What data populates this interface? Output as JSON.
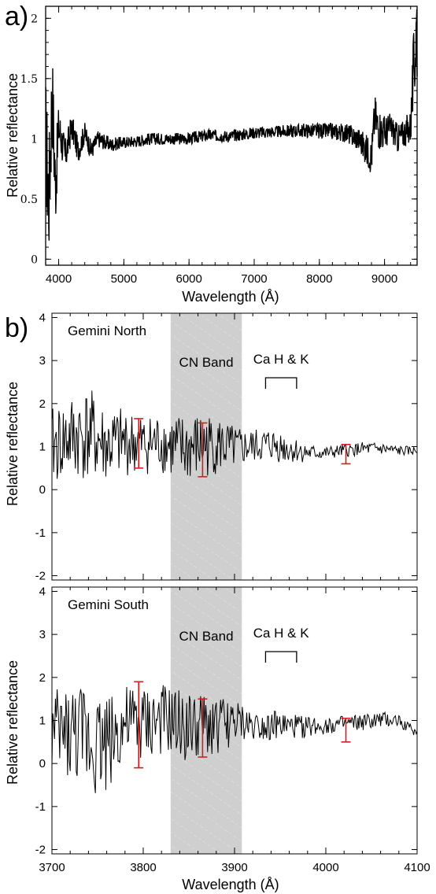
{
  "chart_data": [
    {
      "type": "line",
      "panel_label": "a)",
      "xlabel": "Wavelength (Å)",
      "ylabel": "Relative reflectance",
      "xlim": [
        3800,
        9500
      ],
      "ylim": [
        -0.05,
        2.1
      ],
      "xticks": [
        4000,
        5000,
        6000,
        7000,
        8000,
        9000
      ],
      "yticks": [
        0,
        0.5,
        1,
        1.5,
        2
      ],
      "ytick_labels": [
        "0",
        "0.5",
        "1",
        "1.5",
        "2"
      ],
      "series": [
        {
          "x": [
            3800,
            3850,
            3900,
            3950,
            4000,
            4100,
            4200,
            4300,
            4400,
            4500,
            4600,
            4800,
            5000,
            5200,
            5400,
            5600,
            5800,
            6000,
            6300,
            6600,
            7000,
            7400,
            7800,
            8200,
            8400,
            8600,
            8800,
            8850,
            8900,
            9000,
            9100,
            9200,
            9300,
            9400,
            9450,
            9500
          ],
          "y": [
            1.0,
            0.5,
            1.4,
            0.6,
            1.1,
            0.85,
            1.1,
            0.9,
            1.05,
            0.9,
            1.0,
            0.95,
            0.97,
            0.98,
            1.0,
            1.0,
            1.0,
            1.0,
            1.03,
            1.02,
            1.05,
            1.06,
            1.07,
            1.06,
            1.05,
            1.0,
            0.85,
            1.2,
            1.1,
            1.05,
            1.1,
            1.0,
            1.05,
            1.1,
            1.6,
            2.0
          ],
          "noise": [
            0.55,
            0.5,
            0.45,
            0.35,
            0.2,
            0.15,
            0.12,
            0.1,
            0.09,
            0.08,
            0.07,
            0.06,
            0.05,
            0.05,
            0.05,
            0.05,
            0.05,
            0.05,
            0.05,
            0.05,
            0.05,
            0.05,
            0.06,
            0.07,
            0.08,
            0.1,
            0.15,
            0.18,
            0.18,
            0.15,
            0.12,
            0.12,
            0.12,
            0.15,
            0.35,
            0.55
          ]
        }
      ],
      "grid": false
    },
    {
      "type": "line",
      "panel_label": "b)",
      "label": "Gemini North",
      "xlabel": "",
      "ylabel": "Relative reflectance",
      "xlim": [
        3700,
        4100
      ],
      "ylim": [
        -2.1,
        4.1
      ],
      "yticks": [
        -2,
        -1,
        0,
        1,
        2,
        3,
        4
      ],
      "xticks": [
        3700,
        3800,
        3900,
        4000,
        4100
      ],
      "show_xtick_labels": false,
      "shaded_band": {
        "x0": 3830,
        "x1": 3908,
        "label": "CN Band"
      },
      "bracket": {
        "x0": 3934,
        "x1": 3968,
        "y": 2.6,
        "label": "Ca H & K"
      },
      "error_bars": [
        {
          "x": 3795,
          "low": 0.5,
          "high": 1.65
        },
        {
          "x": 3865,
          "low": 0.3,
          "high": 1.55
        },
        {
          "x": 4022,
          "low": 0.6,
          "high": 1.05
        }
      ],
      "series": [
        {
          "x": [
            3700,
            3720,
            3740,
            3760,
            3780,
            3800,
            3820,
            3840,
            3860,
            3880,
            3900,
            3920,
            3940,
            3960,
            3980,
            4000,
            4020,
            4040,
            4060,
            4080,
            4100
          ],
          "y": [
            1.0,
            1.2,
            1.3,
            1.0,
            1.1,
            1.05,
            1.1,
            0.9,
            1.0,
            1.05,
            0.95,
            1.0,
            1.05,
            0.95,
            0.85,
            0.85,
            0.9,
            0.95,
            0.95,
            0.9,
            0.9
          ],
          "noise": [
            0.9,
            1.0,
            1.1,
            0.9,
            0.8,
            0.7,
            0.7,
            0.85,
            0.8,
            0.7,
            0.5,
            0.4,
            0.4,
            0.35,
            0.2,
            0.15,
            0.15,
            0.15,
            0.15,
            0.12,
            0.1
          ]
        }
      ],
      "grid": false
    },
    {
      "type": "line",
      "label": "Gemini South",
      "xlabel": "Wavelength (Å)",
      "ylabel": "Relative reflectance",
      "xlim": [
        3700,
        4100
      ],
      "ylim": [
        -2.1,
        4.1
      ],
      "yticks": [
        -2,
        -1,
        0,
        1,
        2,
        3,
        4
      ],
      "xticks": [
        3700,
        3800,
        3900,
        4000,
        4100
      ],
      "show_xtick_labels": true,
      "shaded_band": {
        "x0": 3830,
        "x1": 3908,
        "label": "CN Band"
      },
      "bracket": {
        "x0": 3934,
        "x1": 3968,
        "y": 2.6,
        "label": "Ca H & K"
      },
      "error_bars": [
        {
          "x": 3795,
          "low": -0.1,
          "high": 1.9
        },
        {
          "x": 3865,
          "low": 0.15,
          "high": 1.5
        },
        {
          "x": 4022,
          "low": 0.5,
          "high": 1.05
        }
      ],
      "series": [
        {
          "x": [
            3700,
            3720,
            3740,
            3760,
            3780,
            3800,
            3820,
            3840,
            3860,
            3880,
            3900,
            3920,
            3940,
            3960,
            3980,
            4000,
            4020,
            4040,
            4060,
            4080,
            4100
          ],
          "y": [
            0.7,
            0.7,
            0.6,
            0.5,
            0.9,
            0.9,
            1.0,
            0.9,
            0.8,
            0.9,
            0.95,
            0.9,
            0.9,
            0.85,
            0.85,
            0.9,
            0.9,
            0.95,
            1.0,
            1.0,
            0.7
          ],
          "noise": [
            1.0,
            1.1,
            1.3,
            1.2,
            0.9,
            0.9,
            0.85,
            0.8,
            0.8,
            0.7,
            0.5,
            0.35,
            0.35,
            0.3,
            0.25,
            0.22,
            0.2,
            0.2,
            0.2,
            0.15,
            0.1
          ]
        }
      ],
      "grid": false
    }
  ]
}
